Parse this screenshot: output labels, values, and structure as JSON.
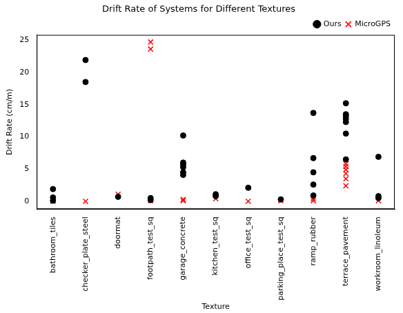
{
  "chart_data": {
    "type": "scatter",
    "title": "Drift Rate of Systems for Different Textures",
    "x_label": "Texture",
    "y_label": "Drift Rate (cm/m)",
    "categories": [
      "bathroom_tiles",
      "checker_plate_steel",
      "doormat",
      "footpath_test_sq",
      "garage_concrete",
      "kitchen_test_sq",
      "office_test_sq",
      "parking_place_test_sq",
      "ramp_rubber",
      "terrace_pavement",
      "workroom_linoleum"
    ],
    "series": [
      {
        "name": "Ours",
        "color": "#000000",
        "marker": "circle",
        "values": [
          [
            1.9,
            0.6,
            0.1
          ],
          [
            21.9,
            18.5
          ],
          [
            0.7
          ],
          [
            0.5,
            0.2
          ],
          [
            10.2,
            6.0,
            5.7,
            5.3,
            4.5,
            4.1
          ],
          [
            1.1,
            0.8
          ],
          [
            2.1
          ],
          [
            0.3
          ],
          [
            13.7,
            6.7,
            4.5,
            2.6,
            0.9
          ],
          [
            15.2,
            13.5,
            13.2,
            12.8,
            12.3,
            10.5,
            6.5
          ],
          [
            6.9,
            0.8,
            0.5
          ]
        ]
      },
      {
        "name": "MicroGPS",
        "color": "#ff0000",
        "marker": "x",
        "values": [
          [
            0.1,
            0.0
          ],
          [
            0.0
          ],
          [
            1.1
          ],
          [
            24.7,
            23.6,
            0.1
          ],
          [
            0.3,
            0.1
          ],
          [
            0.4
          ],
          [
            0.0
          ],
          [
            0.1
          ],
          [
            0.4,
            0.1
          ],
          [
            5.8,
            5.4,
            4.9,
            4.3,
            3.5,
            2.4
          ],
          [
            0.1
          ]
        ]
      }
    ],
    "ylim": [
      -1.2,
      25.8
    ],
    "yticks": [
      0,
      5,
      10,
      15,
      20,
      25
    ],
    "grid": false,
    "legend": "upper right"
  }
}
